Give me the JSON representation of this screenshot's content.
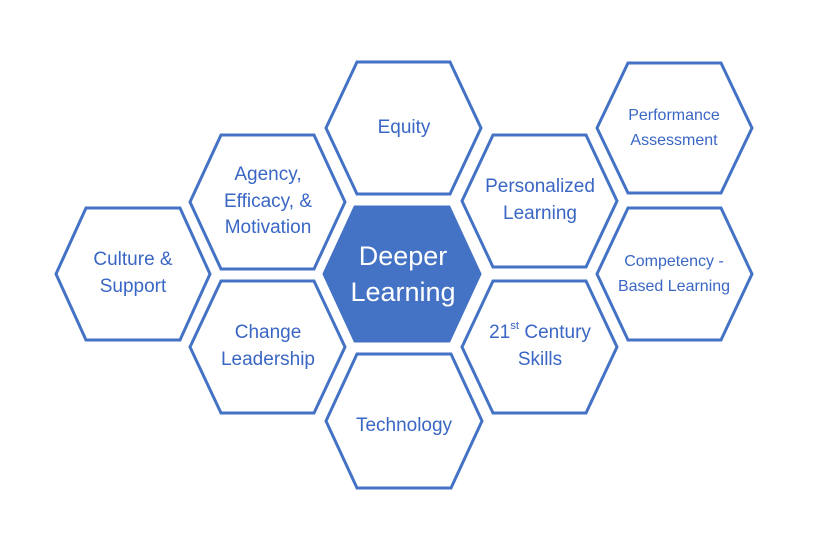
{
  "diagram": {
    "colors": {
      "outline": "#4472C4",
      "center_fill": "#4472C4",
      "center_text": "#FFFFFF",
      "label_text": "#3A66C4",
      "background": "#FFFFFF"
    },
    "center": {
      "line1": "Deeper",
      "line2": "Learning"
    },
    "nodes": {
      "equity": {
        "line1": "Equity"
      },
      "agency": {
        "line1": "Agency,",
        "line2": "Efficacy, &",
        "line3": "Motivation"
      },
      "culture": {
        "line1": "Culture &",
        "line2": "Support"
      },
      "change": {
        "line1": "Change",
        "line2": "Leadership"
      },
      "technology": {
        "line1": "Technology"
      },
      "skills": {
        "line1_num": "21",
        "line1_sup": "st",
        "line1_rest": " Century",
        "line2": "Skills"
      },
      "personalized": {
        "line1": "Personalized",
        "line2": "Learning"
      },
      "performance": {
        "line1": "Performance",
        "line2": "Assessment"
      },
      "competency": {
        "line1": "Competency -",
        "line2": "Based Learning"
      }
    }
  }
}
